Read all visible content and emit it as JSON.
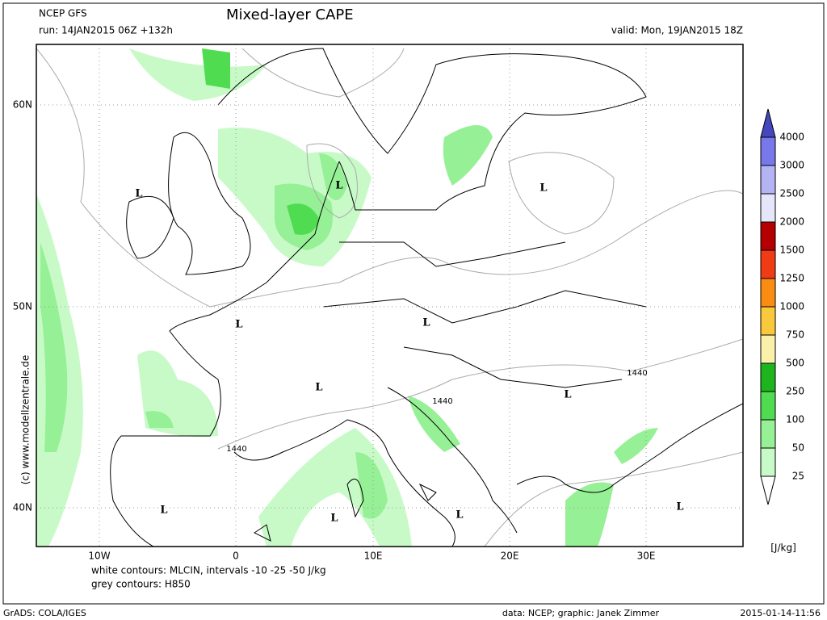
{
  "header": {
    "model": "NCEP GFS",
    "run": "run: 14JAN2015 06Z +132h",
    "title": "Mixed-layer CAPE",
    "valid": "valid: Mon, 19JAN2015 18Z"
  },
  "map": {
    "lat_labels": [
      "60N",
      "50N",
      "40N"
    ],
    "lon_labels": [
      "10W",
      "0",
      "10E",
      "20E",
      "30E"
    ],
    "lows": [
      "L",
      "L",
      "L",
      "L",
      "L",
      "L",
      "L",
      "L",
      "L",
      "L",
      "L"
    ],
    "contour_labels": [
      "1440",
      "1440",
      "1440"
    ]
  },
  "colorbar": {
    "levels": [
      25,
      50,
      100,
      250,
      500,
      750,
      1000,
      1250,
      1500,
      2000,
      2500,
      3000,
      4000
    ],
    "colors": [
      "#ffffff",
      "#c8fac8",
      "#96f096",
      "#50dc50",
      "#1eb41e",
      "#faf0aa",
      "#fac83c",
      "#fa8c14",
      "#f03c14",
      "#b40000",
      "#e6e6fa",
      "#b4b4f5",
      "#7878eb",
      "#4646be"
    ],
    "unit": "[J/kg]"
  },
  "notes": {
    "mlcin": "white contours: MLCIN, intervals -10 -25 -50 J/kg",
    "h850": "grey contours: H850",
    "copyright": "(c) www.modellzentrale.de"
  },
  "footer": {
    "software": "GrADS: COLA/IGES",
    "credit": "data: NCEP; graphic: Janek Zimmer",
    "timestamp": "2015-01-14-11:56"
  }
}
